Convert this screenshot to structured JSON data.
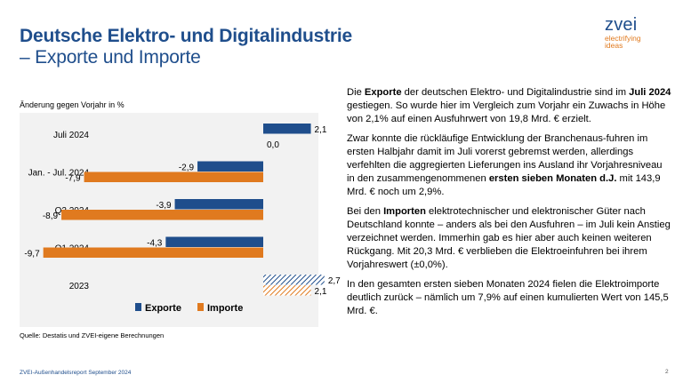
{
  "title": {
    "line1": "Deutsche Elektro- und Digitalindustrie",
    "line2": "– Exporte und Importe"
  },
  "logo": {
    "word": "zvei",
    "tagline1": "electrifying",
    "tagline2": "ideas"
  },
  "chart_caption": "Änderung gegen Vorjahr in %",
  "source": "Quelle: Destatis und ZVEI-eigene Berechnungen",
  "chart_data": {
    "type": "bar",
    "orientation": "horizontal",
    "categories": [
      "Juli 2024",
      "Jan. - Jul. 2024",
      "Q2 2024",
      "Q1 2024",
      "2023"
    ],
    "series": [
      {
        "name": "Exporte",
        "color": "#1f4e8c",
        "values": [
          2.1,
          -2.9,
          -3.9,
          -4.3,
          2.7
        ],
        "labels": [
          "2,1",
          "-2,9",
          "-3,9",
          "-4,3",
          "2,7"
        ]
      },
      {
        "name": "Importe",
        "color": "#e07a1f",
        "values": [
          0.0,
          -7.9,
          -8.9,
          -9.7,
          2.1
        ],
        "labels": [
          "0,0",
          "-7,9",
          "-8,9",
          "-9,7",
          "2,1"
        ]
      }
    ],
    "hatched_category": "2023",
    "xlim": [
      -10,
      4
    ],
    "grid": false,
    "legend_position": "bottom"
  },
  "paragraphs": [
    [
      {
        "t": "Die ",
        "b": false
      },
      {
        "t": "Exporte",
        "b": true
      },
      {
        "t": " der deutschen Elektro- und Digitalindustrie sind im ",
        "b": false
      },
      {
        "t": "Juli 2024",
        "b": true
      },
      {
        "t": " gestiegen. So wurde hier im Vergleich zum Vorjahr ein Zuwachs in Höhe von 2,1% auf einen Ausfuhrwert von 19,8 Mrd. € erzielt.",
        "b": false
      }
    ],
    [
      {
        "t": "Zwar konnte die rückläufige Entwicklung der Branchenaus-fuhren im ersten Halbjahr damit im Juli vorerst gebremst werden, allerdings verfehlten die aggregierten Lieferungen ins Ausland ihr Vorjahresniveau in den zusammengenommenen ",
        "b": false
      },
      {
        "t": "ersten sieben Monaten d.J.",
        "b": true
      },
      {
        "t": " mit 143,9 Mrd. € noch um 2,9%.",
        "b": false
      }
    ],
    [
      {
        "t": "Bei den ",
        "b": false
      },
      {
        "t": "Importen",
        "b": true
      },
      {
        "t": " elektrotechnischer und elektronischer Güter nach Deutschland konnte – anders als bei den Ausfuhren – im Juli kein Anstieg verzeichnet werden. Immerhin gab es hier aber auch keinen weiteren Rückgang. Mit 20,3 Mrd. € verblieben die Elektroeinfuhren bei ihrem Vorjahreswert (±0,0%).",
        "b": false
      }
    ],
    [
      {
        "t": "In den gesamten ersten sieben Monaten 2024 fielen die Elektroimporte deutlich zurück – nämlich um 7,9% auf einen kumulierten Wert von 145,5 Mrd. €.",
        "b": false
      }
    ]
  ],
  "footer": {
    "left": "ZVEI-Außenhandelsreport September 2024",
    "page": "2"
  }
}
